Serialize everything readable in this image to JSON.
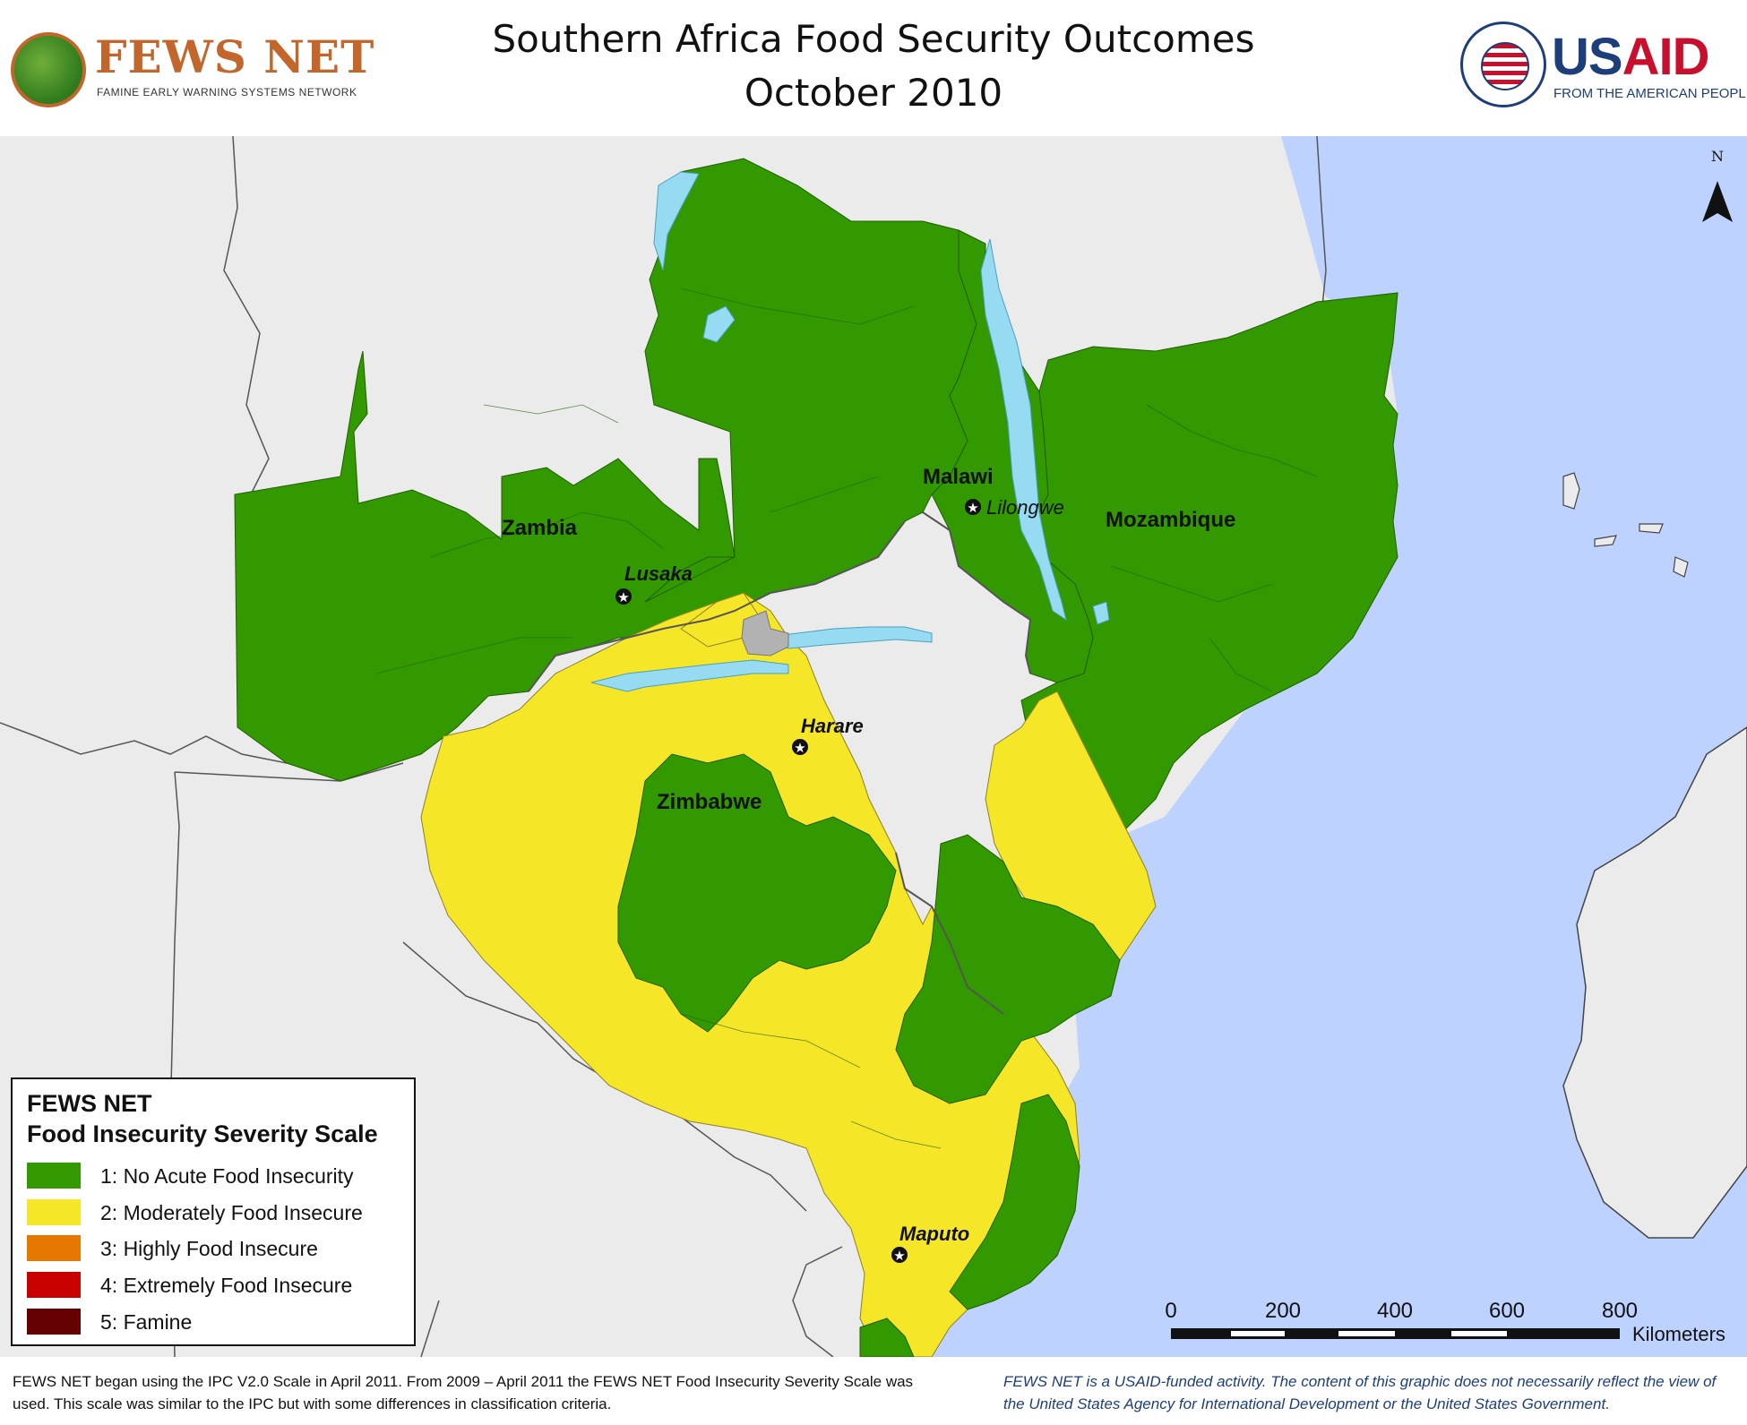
{
  "title": {
    "line1": "Southern Africa Food Security Outcomes",
    "line2": "October 2010"
  },
  "logos": {
    "fews": {
      "name": "FEWS NET",
      "subtitle": "FAMINE EARLY WARNING SYSTEMS NETWORK"
    },
    "usaid": {
      "us": "US",
      "aid": "AID",
      "tagline": "FROM THE AMERICAN PEOPLE"
    }
  },
  "map": {
    "countries": [
      "Zambia",
      "Malawi",
      "Mozambique",
      "Zimbabwe"
    ],
    "cities": [
      "Lusaka",
      "Lilongwe",
      "Harare",
      "Maputo"
    ],
    "north_label": "N",
    "scale": {
      "ticks": [
        "0",
        "200",
        "400",
        "600",
        "800"
      ],
      "unit": "Kilometers"
    },
    "colors": {
      "ocean": "#bed2ff",
      "land_outside": "#ebebeb",
      "lake": "#97dbf2",
      "no_data": "#b2b2b2",
      "phase1": "#339900",
      "phase2": "#f5e628"
    }
  },
  "legend": {
    "title_line1": "FEWS NET",
    "title_line2": "Food Insecurity Severity Scale",
    "items": [
      {
        "label": "1: No Acute Food Insecurity",
        "color": "#339900"
      },
      {
        "label": "2: Moderately Food Insecure",
        "color": "#f5e628"
      },
      {
        "label": "3: Highly Food Insecure",
        "color": "#e67800"
      },
      {
        "label": "4: Extremely Food Insecure",
        "color": "#c80000"
      },
      {
        "label": "5: Famine",
        "color": "#640000"
      }
    ]
  },
  "footer": {
    "left": "FEWS NET began using the IPC V2.0 Scale in April 2011. From 2009 – April 2011 the FEWS NET Food Insecurity Severity Scale was used. This scale was similar to the IPC but with some differences in classification criteria.",
    "right": "FEWS NET is a USAID-funded activity. The content of this graphic does not necessarily reflect the view of the United States Agency for International Development or the United States Government."
  }
}
